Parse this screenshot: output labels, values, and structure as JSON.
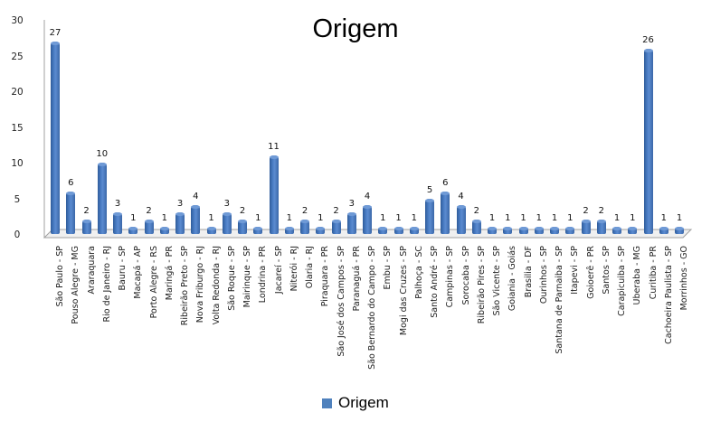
{
  "chart_data": {
    "type": "bar",
    "title": "Origem",
    "xlabel": "",
    "ylabel": "",
    "ylim": [
      0,
      30
    ],
    "yticks": [
      0,
      5,
      10,
      15,
      20,
      25,
      30
    ],
    "grid": false,
    "legend_position": "bottom",
    "bar_color": "#4f81bd",
    "categories": [
      "São Paulo - SP",
      "Pouso Alegre - MG",
      "Araraquara",
      "Rio de Janeiro - RJ",
      "Bauru - SP",
      "Macapá - AP",
      "Porto Alegre - RS",
      "Maringá - PR",
      "Ribeirão Preto - SP",
      "Nova Friburgo - RJ",
      "Volta Redonda - RJ",
      "São Roque - SP",
      "Mairinque - SP",
      "Londrina - PR",
      "Jacareí - SP",
      "Niterói - RJ",
      "Olaria - RJ",
      "Piraquara - PR",
      "São José dos Campos - SP",
      "Paranaguá - PR",
      "São Bernardo do Campo - SP",
      "Embu - SP",
      "Mogi das Cruzes - SP",
      "Palhoça - SC",
      "Santo André - SP",
      "Campinas - SP",
      "Sorocaba - SP",
      "Ribeirão Pires - SP",
      "São Vicente - SP",
      "Goiania - Goiás",
      "Brasilia - DF",
      "Ourinhos - SP",
      "Santana de Parnaiba - SP",
      "Itapevi - SP",
      "Goioerê - PR",
      "Santos - SP",
      "Carapicuiba - SP",
      "Uberaba - MG",
      "Curitiba - PR",
      "Cachoeira Paulista - SP",
      "Morrinhos - GO"
    ],
    "series": [
      {
        "name": "Origem",
        "values": [
          27,
          6,
          2,
          10,
          3,
          1,
          2,
          1,
          3,
          4,
          1,
          3,
          2,
          1,
          11,
          1,
          2,
          1,
          2,
          3,
          4,
          1,
          1,
          1,
          5,
          6,
          4,
          2,
          1,
          1,
          1,
          1,
          1,
          1,
          2,
          2,
          1,
          1,
          26,
          1,
          1
        ]
      }
    ]
  },
  "legend": {
    "label": "Origem"
  }
}
